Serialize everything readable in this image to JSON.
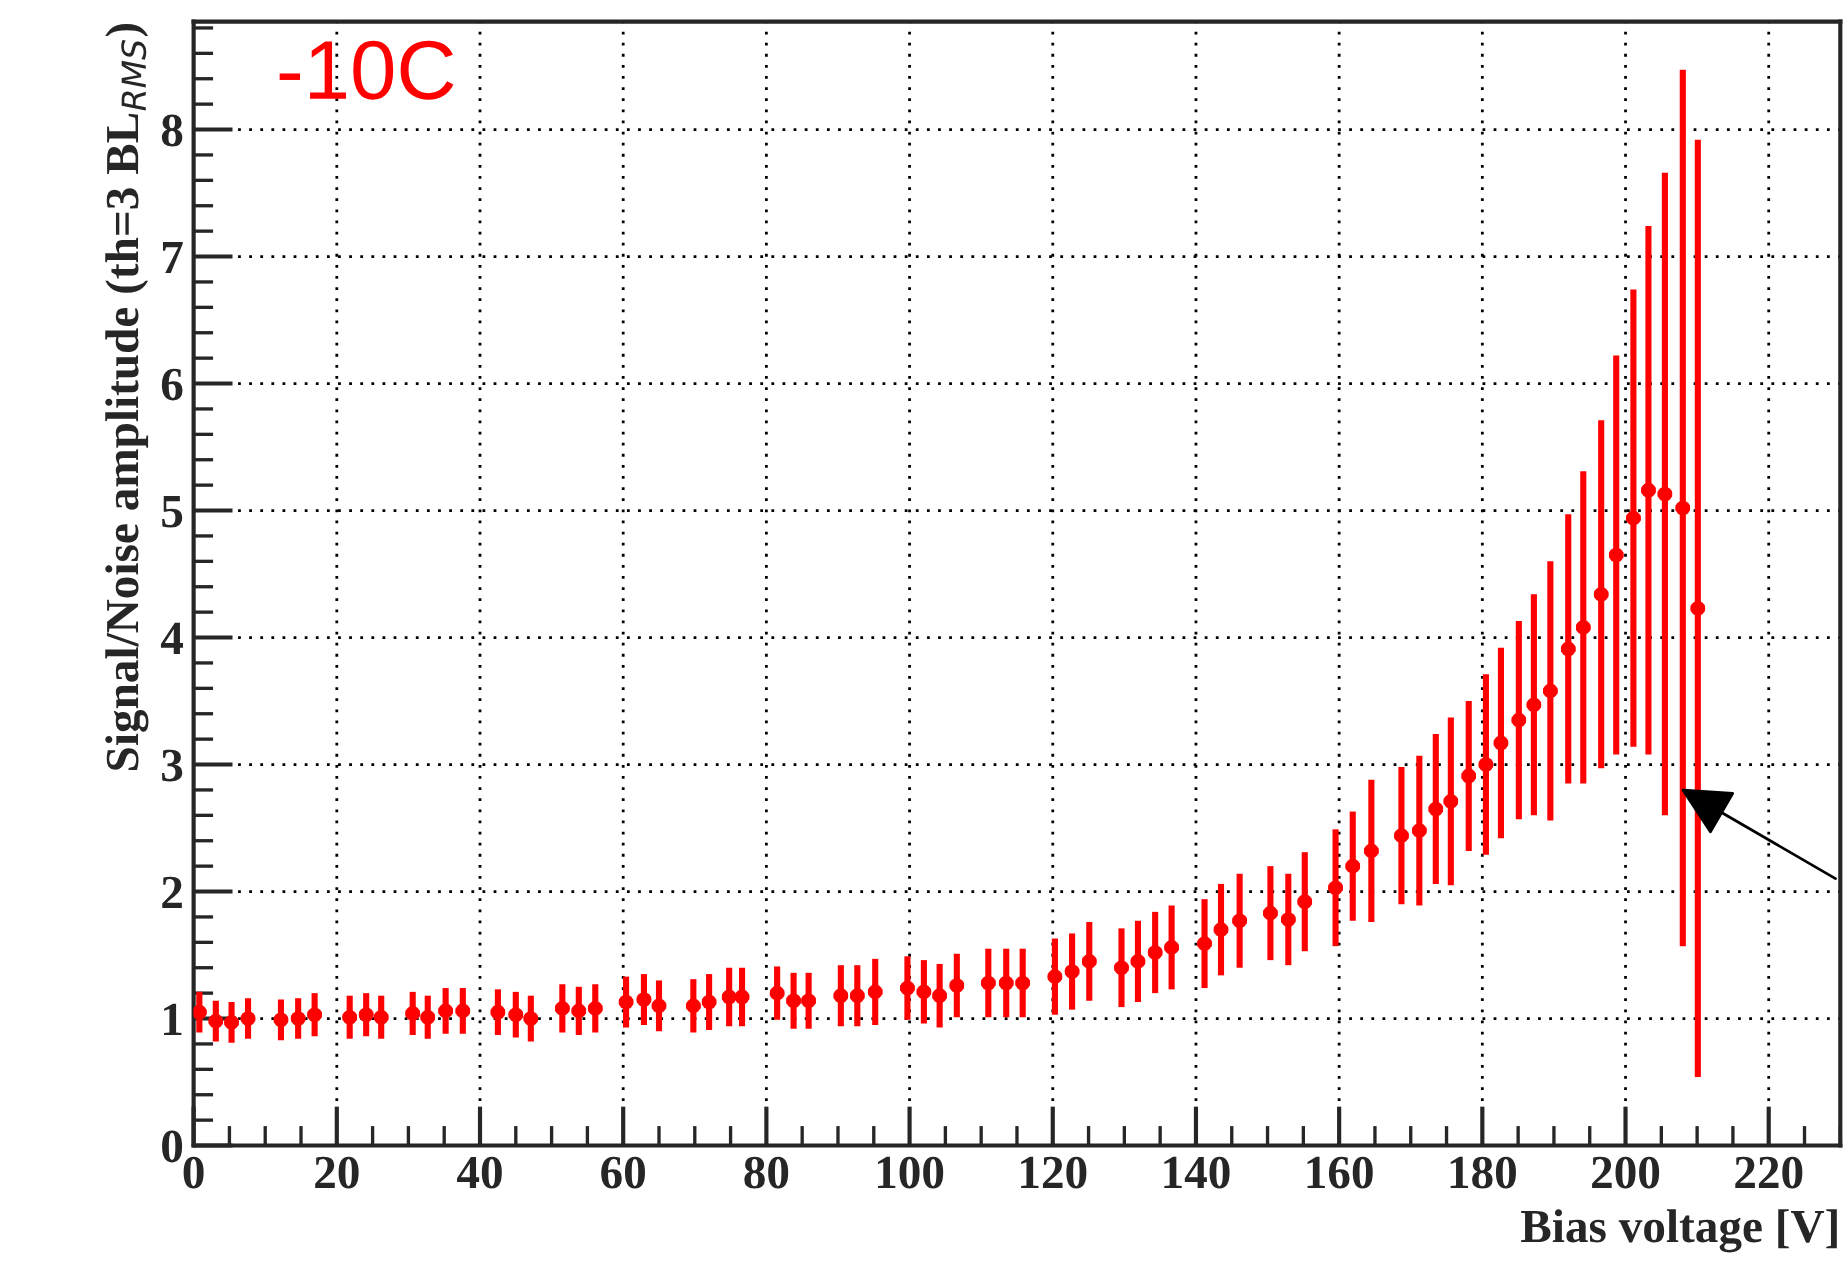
{
  "chart_data": {
    "type": "scatter",
    "xlabel": "Bias voltage [V]",
    "ylabel": "Signal/Noise amplitude (th=3 BL$_{RMS}$)",
    "annotations": [
      "-10C"
    ],
    "x": [
      0.8,
      3.1,
      5.3,
      7.6,
      12.2,
      14.6,
      16.9,
      21.8,
      24.1,
      26.2,
      30.6,
      32.7,
      35.2,
      37.6,
      42.5,
      45,
      47.1,
      51.5,
      53.8,
      56.1,
      60.4,
      62.9,
      65,
      69.8,
      72,
      74.8,
      76.6,
      81.5,
      83.8,
      85.9,
      90.4,
      92.7,
      95.2,
      99.7,
      102,
      104.2,
      106.6,
      111,
      113.5,
      115.8,
      120.3,
      122.7,
      125.1,
      129.6,
      131.9,
      134.3,
      136.6,
      141.2,
      143.5,
      146.1,
      150.4,
      152.9,
      155.2,
      159.5,
      161.9,
      164.5,
      168.7,
      171.2,
      173.5,
      175.6,
      178.1,
      180.5,
      182.6,
      185.1,
      187.2,
      189.5,
      192,
      194.1,
      196.6,
      198.7,
      201.1,
      203.2,
      205.5,
      208,
      210.1
    ],
    "series": [
      {
        "color": "#ff0000",
        "values": [
          1.05,
          0.98,
          0.97,
          1.0,
          0.99,
          1.0,
          1.03,
          1.01,
          1.03,
          1.01,
          1.04,
          1.01,
          1.06,
          1.06,
          1.05,
          1.03,
          1.0,
          1.08,
          1.06,
          1.08,
          1.13,
          1.15,
          1.1,
          1.1,
          1.13,
          1.17,
          1.17,
          1.2,
          1.14,
          1.14,
          1.18,
          1.18,
          1.21,
          1.24,
          1.21,
          1.18,
          1.26,
          1.28,
          1.28,
          1.28,
          1.33,
          1.37,
          1.45,
          1.4,
          1.45,
          1.52,
          1.56,
          1.59,
          1.7,
          1.77,
          1.83,
          1.78,
          1.92,
          2.03,
          2.2,
          2.32,
          2.44,
          2.48,
          2.65,
          2.71,
          2.91,
          3.0,
          3.17,
          3.35,
          3.47,
          3.58,
          3.91,
          4.08,
          4.34,
          4.65,
          4.94,
          5.16,
          5.13,
          5.02,
          4.23
        ],
        "errors": [
          0.16,
          0.16,
          0.16,
          0.16,
          0.16,
          0.16,
          0.17,
          0.17,
          0.17,
          0.17,
          0.17,
          0.17,
          0.18,
          0.18,
          0.18,
          0.18,
          0.18,
          0.19,
          0.19,
          0.19,
          0.2,
          0.2,
          0.2,
          0.21,
          0.22,
          0.23,
          0.23,
          0.21,
          0.22,
          0.22,
          0.24,
          0.24,
          0.26,
          0.25,
          0.25,
          0.25,
          0.25,
          0.27,
          0.27,
          0.27,
          0.3,
          0.3,
          0.31,
          0.31,
          0.32,
          0.32,
          0.33,
          0.35,
          0.36,
          0.37,
          0.37,
          0.36,
          0.39,
          0.46,
          0.43,
          0.56,
          0.54,
          0.59,
          0.59,
          0.66,
          0.59,
          0.71,
          0.75,
          0.78,
          0.87,
          1.02,
          1.06,
          1.23,
          1.37,
          1.57,
          1.8,
          2.08,
          2.53,
          3.45,
          3.69
        ],
        "xerrors": [
          1,
          1,
          1,
          1,
          1,
          1,
          1,
          1,
          1,
          1,
          1,
          1,
          1,
          1,
          1,
          1,
          1,
          1,
          1,
          1,
          1,
          1,
          1,
          1,
          1,
          1,
          1,
          1,
          1,
          1,
          1,
          1,
          1,
          1,
          1,
          1,
          1,
          1,
          1,
          1,
          1,
          1,
          1,
          1,
          1,
          1,
          1,
          1,
          1,
          1,
          1,
          1,
          1,
          1,
          1,
          1,
          1,
          1,
          1,
          1,
          1,
          1,
          1,
          1,
          1,
          1,
          1,
          1,
          1,
          1,
          1,
          1,
          1,
          1,
          1
        ]
      }
    ],
    "xlim": [
      0,
      230
    ],
    "xticks": [
      0,
      20,
      40,
      60,
      80,
      100,
      120,
      140,
      160,
      180,
      200,
      220
    ],
    "ylim": [
      0,
      8.85
    ],
    "yticks": [
      0,
      1,
      2,
      3,
      4,
      5,
      6,
      7,
      8
    ],
    "grid": true,
    "marker": "circle"
  }
}
